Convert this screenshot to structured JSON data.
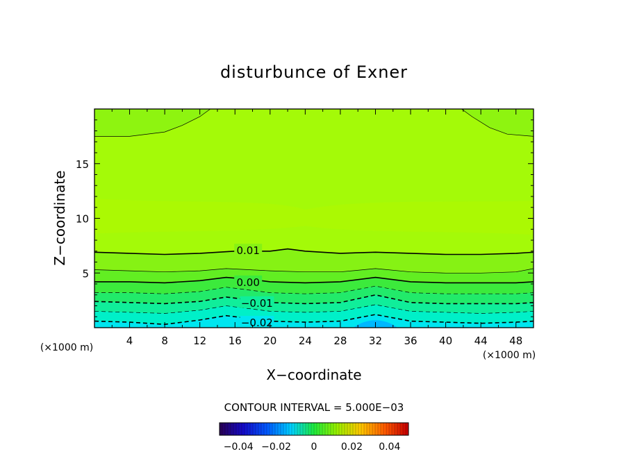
{
  "chart_data": {
    "type": "contour",
    "title": "disturbunce of Exner",
    "xlabel": "X−coordinate",
    "ylabel": "Z−coordinate",
    "x_unit_left": "(×1000 m)",
    "x_unit_right": "(×1000 m)",
    "xlim": [
      0,
      50
    ],
    "ylim": [
      0,
      20
    ],
    "x_ticks": [
      4,
      8,
      12,
      16,
      20,
      24,
      28,
      32,
      36,
      40,
      44,
      48
    ],
    "y_ticks": [
      5,
      10,
      15
    ],
    "contour_interval_text": "CONTOUR INTERVAL = 5.000E−03",
    "contour_interval": 0.005,
    "contour_labels": [
      {
        "text": "0.01",
        "level": 0.01,
        "x": 17.5,
        "z": 7.1
      },
      {
        "text": "0.00",
        "level": 0.0,
        "x": 17.5,
        "z": 4.2
      },
      {
        "text": "−0.01",
        "level": -0.01,
        "x": 18.5,
        "z": 2.3
      },
      {
        "text": "−0.02",
        "level": -0.02,
        "x": 18.5,
        "z": 0.5
      }
    ],
    "contours": [
      {
        "level": 0.015,
        "style": "solid",
        "points": [
          [
            0,
            17.5
          ],
          [
            4,
            17.5
          ],
          [
            8,
            17.9
          ],
          [
            10,
            18.5
          ],
          [
            12,
            19.3
          ],
          [
            13.2,
            20
          ]
        ]
      },
      {
        "level": 0.015,
        "style": "solid",
        "points": [
          [
            41.8,
            20
          ],
          [
            43,
            19.3
          ],
          [
            45,
            18.3
          ],
          [
            47,
            17.7
          ],
          [
            50,
            17.5
          ]
        ]
      },
      {
        "level": 0.01,
        "style": "solid",
        "points": [
          [
            0,
            6.9
          ],
          [
            4,
            6.8
          ],
          [
            8,
            6.7
          ],
          [
            12,
            6.8
          ],
          [
            16,
            7.0
          ],
          [
            20,
            7.0
          ],
          [
            22,
            7.2
          ],
          [
            24,
            7.0
          ],
          [
            28,
            6.8
          ],
          [
            32,
            6.9
          ],
          [
            36,
            6.8
          ],
          [
            40,
            6.7
          ],
          [
            44,
            6.7
          ],
          [
            48,
            6.8
          ],
          [
            50,
            6.9
          ]
        ]
      },
      {
        "level": 0.005,
        "style": "solid",
        "points": [
          [
            0,
            5.3
          ],
          [
            4,
            5.2
          ],
          [
            8,
            5.1
          ],
          [
            12,
            5.2
          ],
          [
            15,
            5.4
          ],
          [
            20,
            5.2
          ],
          [
            24,
            5.1
          ],
          [
            28,
            5.1
          ],
          [
            32,
            5.4
          ],
          [
            36,
            5.1
          ],
          [
            40,
            5.0
          ],
          [
            44,
            5.0
          ],
          [
            48,
            5.1
          ],
          [
            50,
            5.4
          ]
        ]
      },
      {
        "level": 0.0,
        "style": "solid",
        "points": [
          [
            0,
            4.2
          ],
          [
            4,
            4.2
          ],
          [
            8,
            4.1
          ],
          [
            12,
            4.3
          ],
          [
            15,
            4.6
          ],
          [
            18,
            4.4
          ],
          [
            20,
            4.2
          ],
          [
            24,
            4.1
          ],
          [
            28,
            4.2
          ],
          [
            32,
            4.6
          ],
          [
            36,
            4.2
          ],
          [
            40,
            4.1
          ],
          [
            44,
            4.1
          ],
          [
            48,
            4.1
          ],
          [
            50,
            4.2
          ]
        ]
      },
      {
        "level": -0.005,
        "style": "dashed",
        "points": [
          [
            0,
            3.2
          ],
          [
            4,
            3.2
          ],
          [
            8,
            3.1
          ],
          [
            12,
            3.3
          ],
          [
            15,
            3.7
          ],
          [
            18,
            3.4
          ],
          [
            20,
            3.2
          ],
          [
            24,
            3.1
          ],
          [
            28,
            3.2
          ],
          [
            32,
            3.8
          ],
          [
            36,
            3.2
          ],
          [
            40,
            3.1
          ],
          [
            44,
            3.1
          ],
          [
            48,
            3.1
          ],
          [
            50,
            3.2
          ]
        ]
      },
      {
        "level": -0.01,
        "style": "dashed",
        "points": [
          [
            0,
            2.4
          ],
          [
            4,
            2.3
          ],
          [
            8,
            2.2
          ],
          [
            12,
            2.4
          ],
          [
            15,
            2.8
          ],
          [
            18,
            2.5
          ],
          [
            20,
            2.3
          ],
          [
            24,
            2.2
          ],
          [
            28,
            2.3
          ],
          [
            32,
            3.0
          ],
          [
            36,
            2.3
          ],
          [
            40,
            2.2
          ],
          [
            44,
            2.2
          ],
          [
            48,
            2.2
          ],
          [
            50,
            2.3
          ]
        ]
      },
      {
        "level": -0.015,
        "style": "dashed",
        "points": [
          [
            0,
            1.5
          ],
          [
            4,
            1.4
          ],
          [
            8,
            1.3
          ],
          [
            12,
            1.6
          ],
          [
            15,
            2.0
          ],
          [
            18,
            1.7
          ],
          [
            20,
            1.5
          ],
          [
            24,
            1.4
          ],
          [
            28,
            1.5
          ],
          [
            32,
            2.1
          ],
          [
            36,
            1.5
          ],
          [
            40,
            1.4
          ],
          [
            44,
            1.3
          ],
          [
            48,
            1.4
          ],
          [
            50,
            1.5
          ]
        ]
      },
      {
        "level": -0.02,
        "style": "dashed",
        "points": [
          [
            0,
            0.6
          ],
          [
            4,
            0.5
          ],
          [
            8,
            0.3
          ],
          [
            12,
            0.7
          ],
          [
            15,
            1.1
          ],
          [
            18,
            0.8
          ],
          [
            20,
            0.6
          ],
          [
            24,
            0.5
          ],
          [
            28,
            0.6
          ],
          [
            32,
            1.2
          ],
          [
            36,
            0.6
          ],
          [
            40,
            0.5
          ],
          [
            44,
            0.4
          ],
          [
            48,
            0.5
          ],
          [
            50,
            0.6
          ]
        ]
      }
    ],
    "colorbar": {
      "vmin": -0.05,
      "vmax": 0.05,
      "tick_labels": [
        "−0.04",
        "−0.02",
        "0",
        "0.02",
        "0.04"
      ],
      "tick_values": [
        -0.04,
        -0.02,
        0,
        0.02,
        0.04
      ]
    },
    "fill_bands": [
      {
        "level": -0.025,
        "color": "#00b8ff"
      },
      {
        "level": -0.02,
        "color": "#00e6f0"
      },
      {
        "level": -0.015,
        "color": "#00f0c8"
      },
      {
        "level": -0.01,
        "color": "#10ee9a"
      },
      {
        "level": -0.005,
        "color": "#22ea6a"
      },
      {
        "level": 0.0,
        "color": "#3cea3c"
      },
      {
        "level": 0.005,
        "color": "#62ee22"
      },
      {
        "level": 0.01,
        "color": "#86f214"
      },
      {
        "level": 0.015,
        "color": "#9cf80c"
      }
    ],
    "background_color": "#a4fa08",
    "upper_band_color": "#8ef410",
    "mid_patch_color": "#b0f800"
  }
}
